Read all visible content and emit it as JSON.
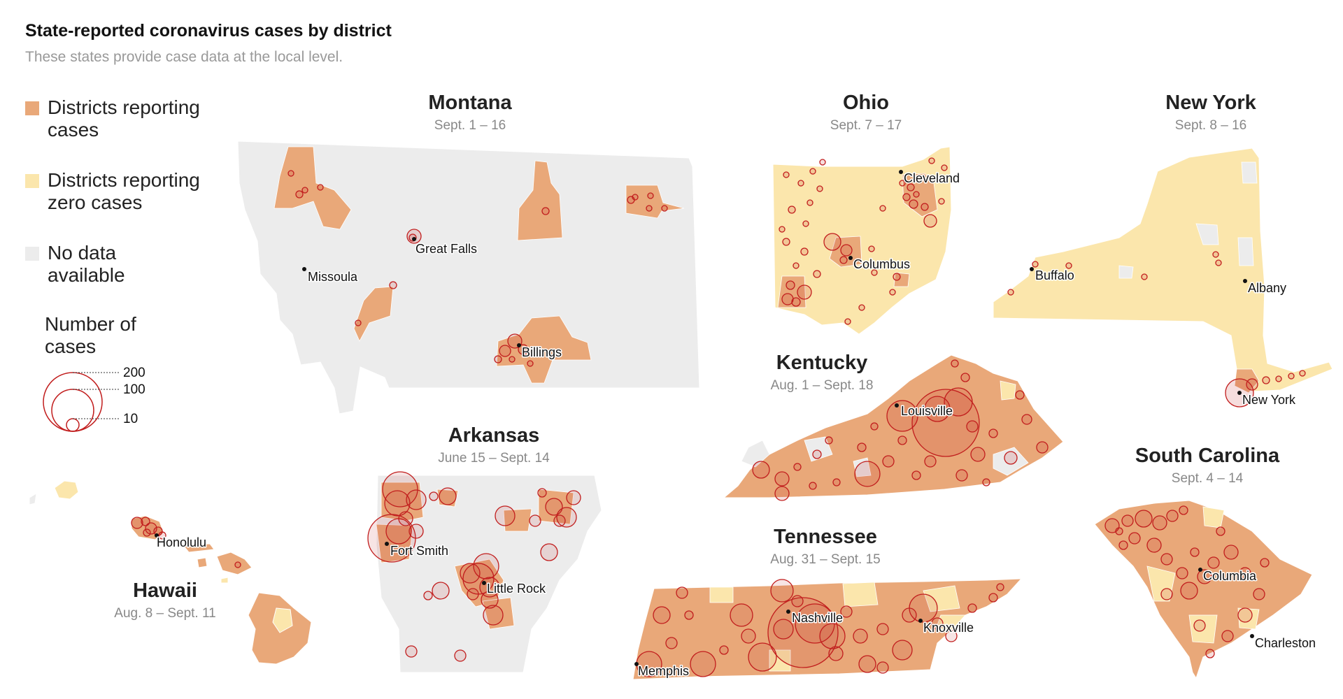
{
  "title": "State-reported coronavirus cases by district",
  "subtitle": "These states provide case data at the local level.",
  "colors": {
    "reporting": "#e9a879",
    "zero": "#fbe6ac",
    "nodata": "#ececec",
    "bubble": "#c11d1d",
    "outline": "#ffffff"
  },
  "legend": {
    "items": [
      {
        "label": "Districts reporting cases",
        "color": "#e9a879"
      },
      {
        "label": "Districts reporting zero cases",
        "color": "#fbe6ac"
      },
      {
        "label": "No data available",
        "color": "#ececec"
      }
    ],
    "size_title": "Number of cases",
    "sizes": [
      {
        "value": 200,
        "label": "200"
      },
      {
        "value": 100,
        "label": "100"
      },
      {
        "value": 10,
        "label": "10"
      }
    ]
  },
  "states": [
    {
      "id": "montana",
      "name": "Montana",
      "dates": "Sept. 1 – 16",
      "cities": [
        "Great Falls",
        "Missoula",
        "Billings"
      ]
    },
    {
      "id": "ohio",
      "name": "Ohio",
      "dates": "Sept. 7 – 17",
      "cities": [
        "Cleveland",
        "Columbus"
      ]
    },
    {
      "id": "new-york",
      "name": "New York",
      "dates": "Sept. 8 – 16",
      "cities": [
        "Buffalo",
        "Albany",
        "New York"
      ]
    },
    {
      "id": "kentucky",
      "name": "Kentucky",
      "dates": "Aug. 1 – Sept. 18",
      "cities": [
        "Louisville"
      ]
    },
    {
      "id": "arkansas",
      "name": "Arkansas",
      "dates": "June 15 – Sept. 14",
      "cities": [
        "Fort Smith",
        "Little Rock"
      ]
    },
    {
      "id": "tennessee",
      "name": "Tennessee",
      "dates": "Aug. 31 – Sept. 15",
      "cities": [
        "Nashville",
        "Knoxville",
        "Memphis"
      ]
    },
    {
      "id": "south-carolina",
      "name": "South Carolina",
      "dates": "Sept. 4 – 14",
      "cities": [
        "Columbia",
        "Charleston"
      ]
    },
    {
      "id": "hawaii",
      "name": "Hawaii",
      "dates": "Aug. 8 – Sept. 11",
      "cities": [
        "Honolulu"
      ]
    }
  ]
}
